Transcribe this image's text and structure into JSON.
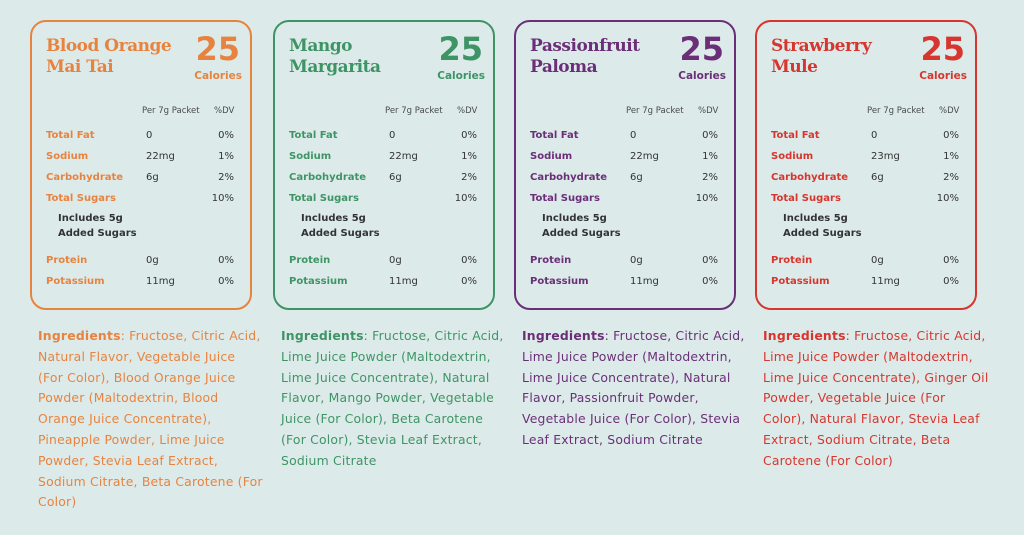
{
  "panels": [
    {
      "title": "Blood Orange Mai Tai",
      "title_lines": [
        "Blood Orange",
        "Mai Tai"
      ],
      "calories": "25",
      "calories_label": "Calories",
      "color": "#e8833f",
      "header_per": "Per 7g Packet",
      "header_dv": "%DV",
      "rows": [
        {
          "name": "Total Fat",
          "amount": "0",
          "dv": "0%"
        },
        {
          "name": "Sodium",
          "amount": "22mg",
          "dv": "1%"
        },
        {
          "name": "Carbohydrate",
          "amount": "6g",
          "dv": "2%"
        },
        {
          "name": "Total Sugars",
          "amount": "",
          "dv": "10%"
        },
        {
          "name": "Protein",
          "amount": "0g",
          "dv": "0%"
        },
        {
          "name": "Potassium",
          "amount": "11mg",
          "dv": "0%"
        }
      ],
      "note_lines": [
        "Includes 5g",
        "Added Sugars"
      ],
      "ingredients_label": "Ingredients",
      "ingredients_text": ": Fructose, Citric Acid, Natural Flavor, Vegetable Juice (For Color), Blood Orange Juice Powder (Maltodextrin, Blood Orange Juice Concentrate), Pineapple Powder, Lime Juice Powder, Stevia Leaf Extract, Sodium Citrate, Beta Carotene (For Color)"
    },
    {
      "title": "Mango Margarita",
      "title_lines": [
        "Mango",
        "Margarita"
      ],
      "calories": "25",
      "calories_label": "Calories",
      "color": "#3f9466",
      "header_per": "Per 7g Packet",
      "header_dv": "%DV",
      "rows": [
        {
          "name": "Total Fat",
          "amount": "0",
          "dv": "0%"
        },
        {
          "name": "Sodium",
          "amount": "22mg",
          "dv": "1%"
        },
        {
          "name": "Carbohydrate",
          "amount": "6g",
          "dv": "2%"
        },
        {
          "name": "Total Sugars",
          "amount": "",
          "dv": "10%"
        },
        {
          "name": "Protein",
          "amount": "0g",
          "dv": "0%"
        },
        {
          "name": "Potassium",
          "amount": "11mg",
          "dv": "0%"
        }
      ],
      "note_lines": [
        "Includes 5g",
        "Added Sugars"
      ],
      "ingredients_label": "Ingredients",
      "ingredients_text": ": Fructose, Citric Acid, Lime Juice Powder (Maltodextrin, Lime Juice Concentrate), Natural Flavor, Mango Powder, Vegetable Juice (For Color), Beta Carotene (For Color), Stevia Leaf Extract, Sodium Citrate"
    },
    {
      "title": "Passionfruit Paloma",
      "title_lines": [
        "Passionfruit",
        "Paloma"
      ],
      "calories": "25",
      "calories_label": "Calories",
      "color": "#6b2f78",
      "header_per": "Per 7g Packet",
      "header_dv": "%DV",
      "rows": [
        {
          "name": "Total Fat",
          "amount": "0",
          "dv": "0%"
        },
        {
          "name": "Sodium",
          "amount": "22mg",
          "dv": "1%"
        },
        {
          "name": "Carbohydrate",
          "amount": "6g",
          "dv": "2%"
        },
        {
          "name": "Total Sugars",
          "amount": "",
          "dv": "10%"
        },
        {
          "name": "Protein",
          "amount": "0g",
          "dv": "0%"
        },
        {
          "name": "Potassium",
          "amount": "11mg",
          "dv": "0%"
        }
      ],
      "note_lines": [
        "Includes 5g",
        "Added Sugars"
      ],
      "ingredients_label": "Ingredients",
      "ingredients_text": ": Fructose, Citric Acid, Lime Juice Powder (Maltodextrin, Lime Juice Concentrate), Natural Flavor, Passionfruit Powder, Vegetable Juice (For Color), Stevia Leaf Extract, Sodium Citrate"
    },
    {
      "title": "Strawberry Mule",
      "title_lines": [
        "Strawberry",
        "Mule"
      ],
      "calories": "25",
      "calories_label": "Calories",
      "color": "#d7362e",
      "header_per": "Per 7g Packet",
      "header_dv": "%DV",
      "rows": [
        {
          "name": "Total Fat",
          "amount": "0",
          "dv": "0%"
        },
        {
          "name": "Sodium",
          "amount": "23mg",
          "dv": "1%"
        },
        {
          "name": "Carbohydrate",
          "amount": "6g",
          "dv": "2%"
        },
        {
          "name": "Total Sugars",
          "amount": "",
          "dv": "10%"
        },
        {
          "name": "Protein",
          "amount": "0g",
          "dv": "0%"
        },
        {
          "name": "Potassium",
          "amount": "11mg",
          "dv": "0%"
        }
      ],
      "note_lines": [
        "Includes 5g",
        "Added Sugars"
      ],
      "ingredients_label": "Ingredients",
      "ingredients_text": ": Fructose, Citric Acid, Lime Juice Powder (Maltodextrin, Lime Juice Concentrate), Ginger Oil Powder, Vegetable Juice (For Color), Natural Flavor, Stevia Leaf Extract, Sodium Citrate, Beta Carotene (For Color)"
    }
  ]
}
